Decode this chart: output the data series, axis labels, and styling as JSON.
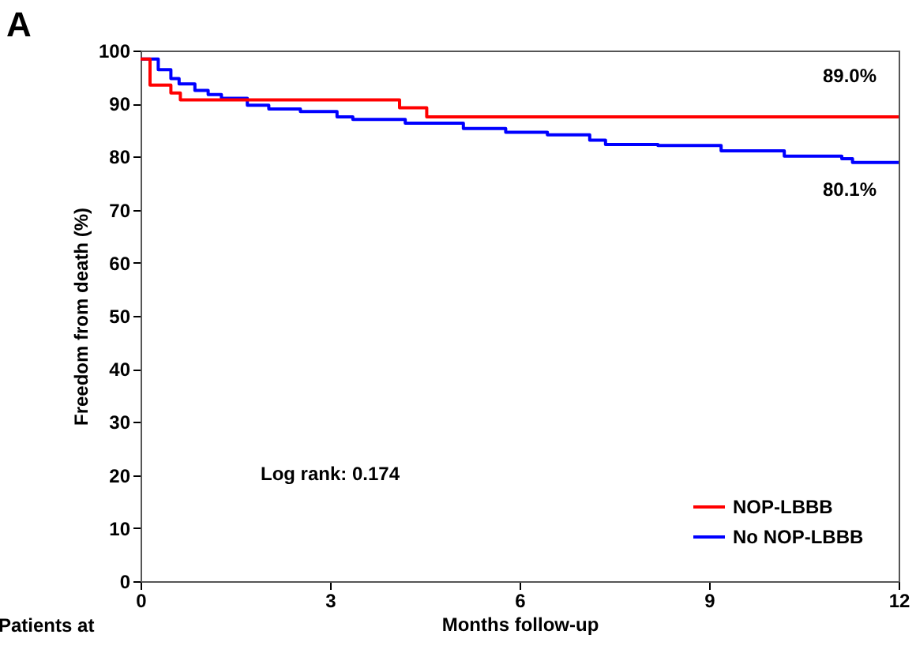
{
  "chart_data": {
    "type": "step",
    "title": "A",
    "xlabel": "Months follow-up",
    "ylabel": "Freedom  from death (%)",
    "series": [
      {
        "name": "NOP-LBBB",
        "color": "#ff0000",
        "x": [
          0,
          0.15,
          0.48,
          0.63,
          4.1,
          4.53,
          12
        ],
        "values": [
          98.4,
          93.5,
          92.0,
          90.7,
          89.2,
          87.5,
          87.5
        ]
      },
      {
        "name": "No NOP-LBBB",
        "color": "#0000ff",
        "x": [
          0,
          0.07,
          0.28,
          0.48,
          0.61,
          0.86,
          1.07,
          1.28,
          1.69,
          2.03,
          2.53,
          3.11,
          3.36,
          4.19,
          5.11,
          5.78,
          6.44,
          7.11,
          7.36,
          8.19,
          9.19,
          10.19,
          11.1,
          11.27,
          12
        ],
        "values": [
          98.4,
          98.4,
          96.4,
          94.7,
          93.7,
          92.5,
          91.7,
          91.0,
          89.7,
          89.0,
          88.5,
          87.5,
          87.0,
          86.3,
          85.3,
          84.6,
          84.1,
          83.1,
          82.3,
          82.1,
          81.1,
          80.1,
          79.6,
          78.9,
          78.9
        ]
      }
    ],
    "xlim": [
      0,
      12
    ],
    "xticks": [
      0,
      3,
      6,
      9,
      12
    ],
    "ylim": [
      0,
      100
    ],
    "yticks": [
      0,
      10,
      20,
      30,
      40,
      50,
      60,
      70,
      80,
      90,
      100
    ],
    "grid": false,
    "legend": "bottom right",
    "line_style": "solid",
    "marker": "none",
    "annotations": [
      "89.0%",
      "80.1%",
      "Log rank: 0.174",
      "Patients at"
    ]
  }
}
